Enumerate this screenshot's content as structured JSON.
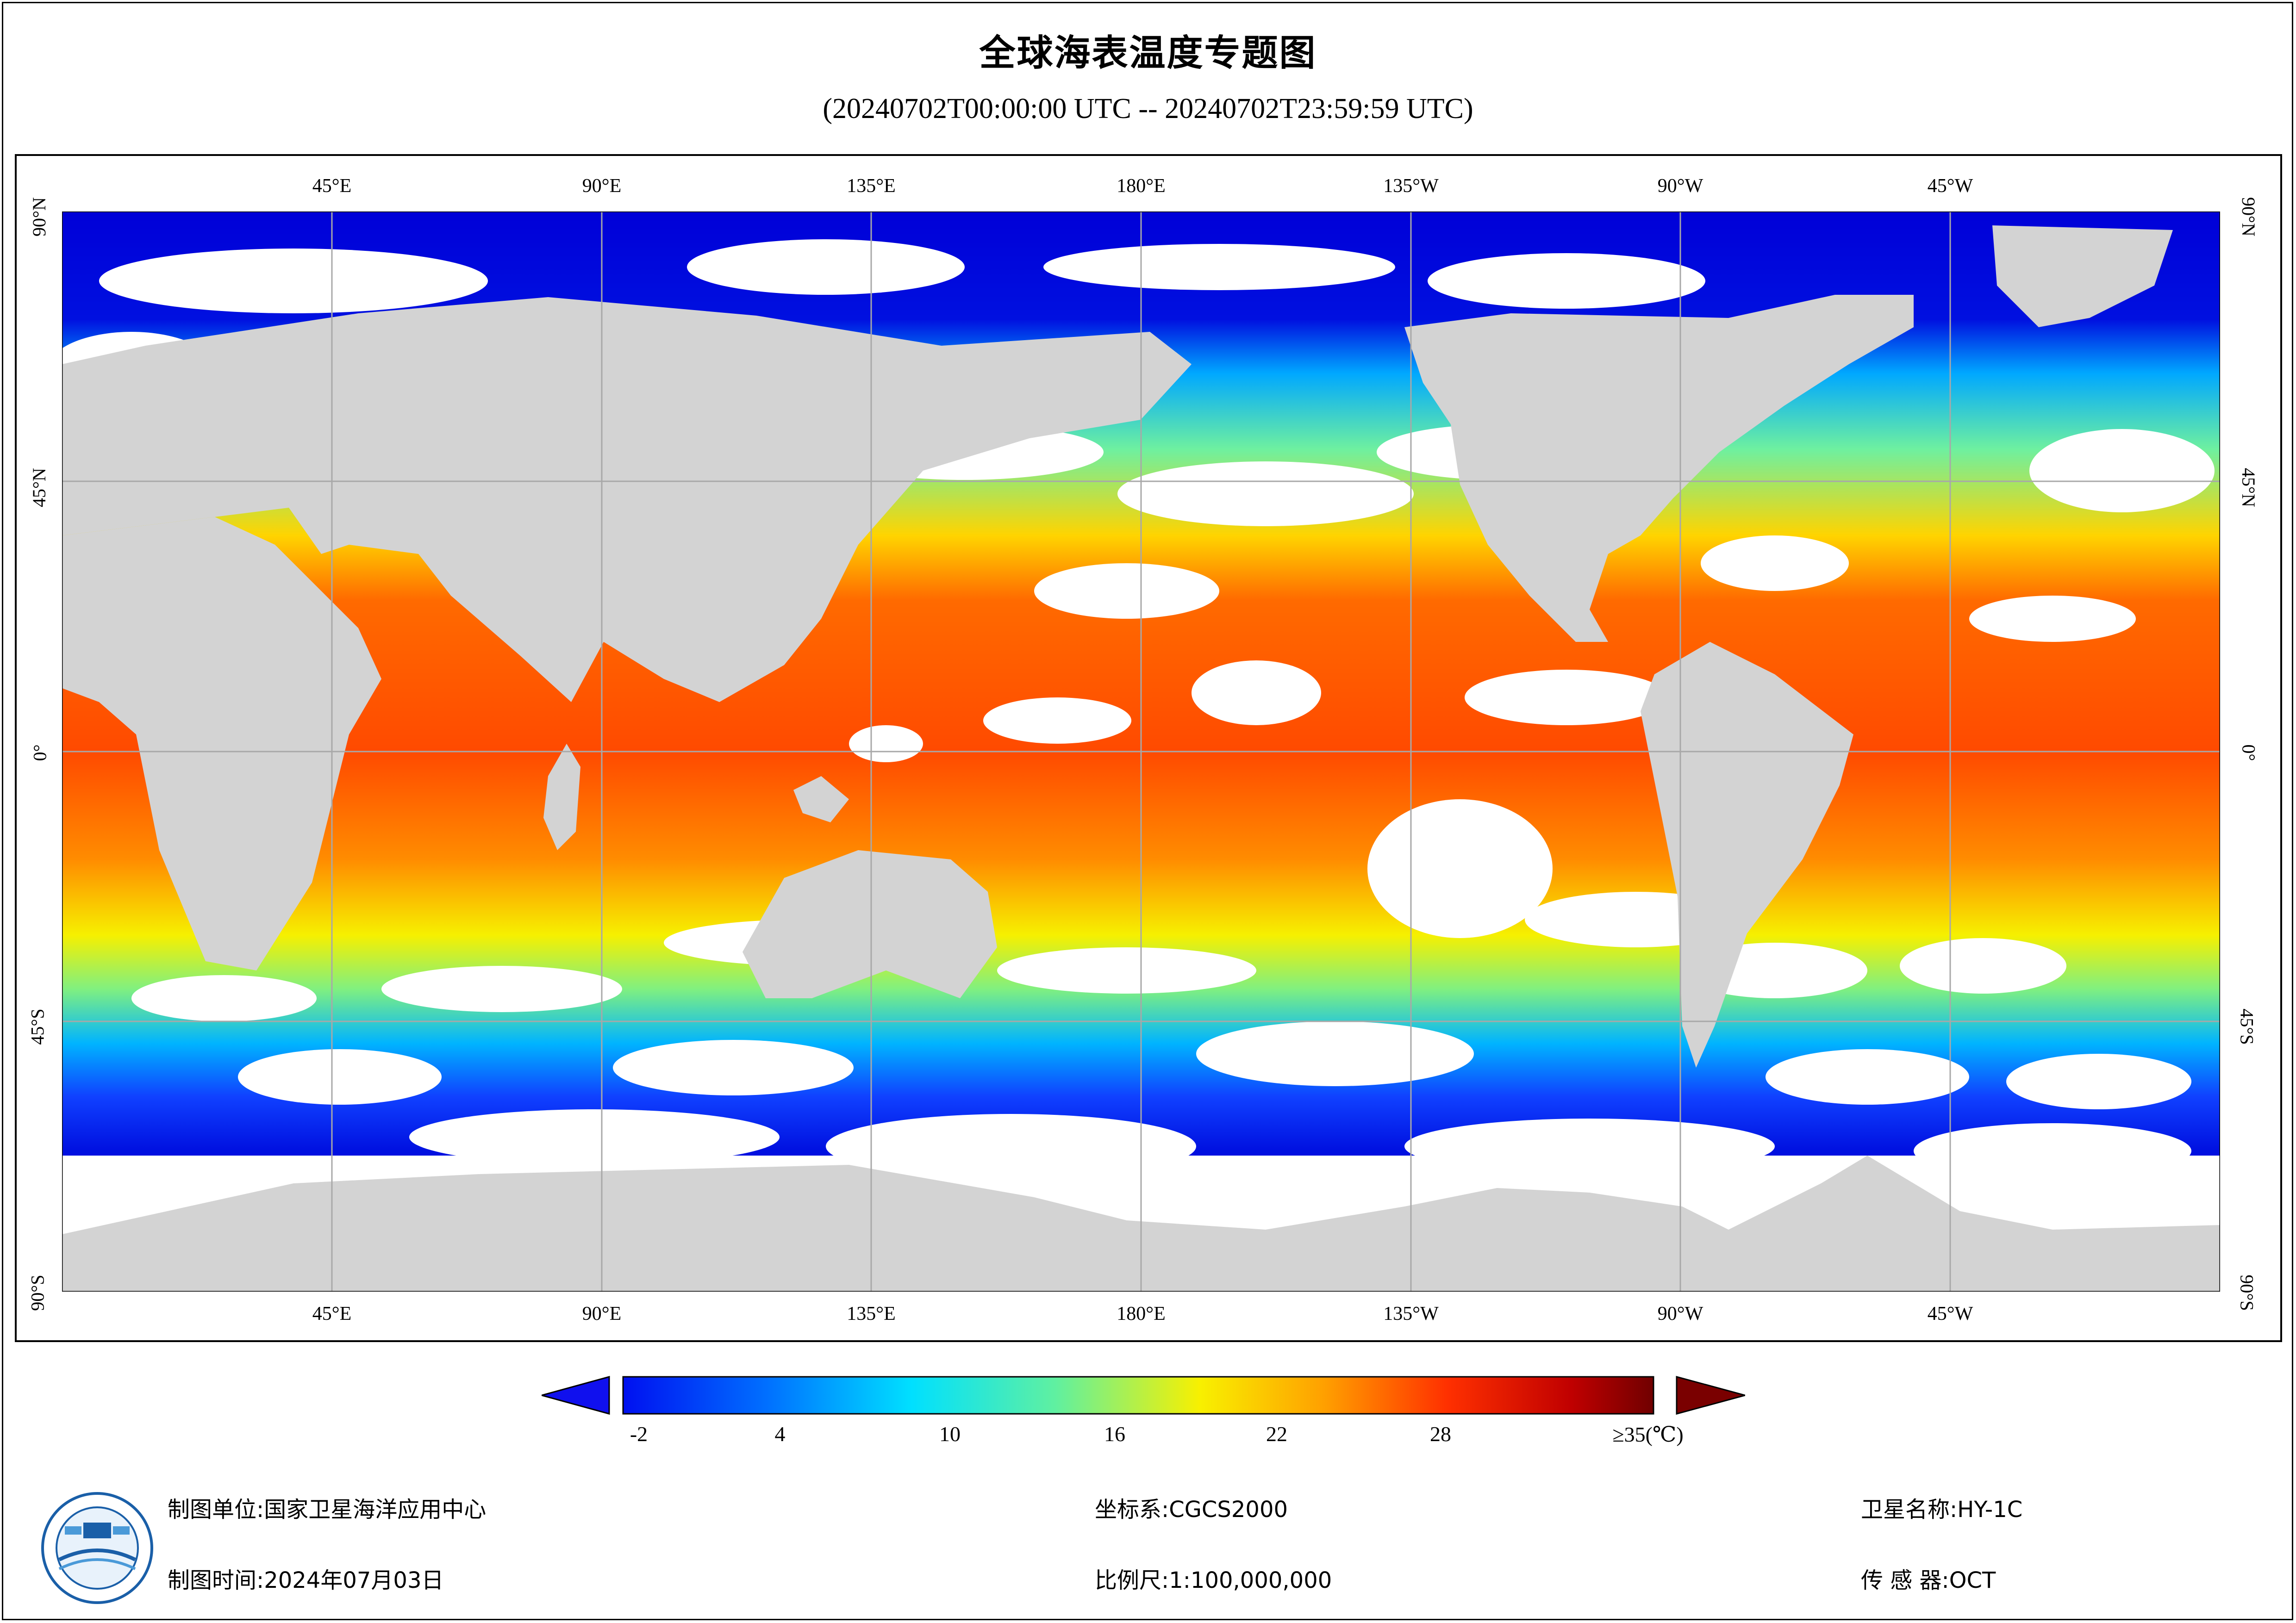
{
  "title": "全球海表温度专题图",
  "subtitle": "(20240702T00:00:00 UTC -- 20240702T23:59:59 UTC)",
  "map": {
    "lon_labels_top": [
      "45°E",
      "90°E",
      "135°E",
      "180°E",
      "135°W",
      "90°W",
      "45°W"
    ],
    "lon_labels_bottom": [
      "45°E",
      "90°E",
      "135°E",
      "180°E",
      "135°W",
      "90°W",
      "45°W"
    ],
    "lat_labels_left": [
      "90°N",
      "45°N",
      "0°",
      "45°S",
      "90°S"
    ],
    "lat_labels_right": [
      "90°N",
      "45°N",
      "0°",
      "45°S",
      "90°S"
    ],
    "colors": {
      "land": "#d3d3d3",
      "cloud": "#ffffff",
      "grid": "#a8a8a8",
      "ice_ocean": "#0000dc"
    }
  },
  "colorbar": {
    "tick_labels": [
      "-2",
      "4",
      "10",
      "16",
      "22",
      "28",
      "≥35(℃)"
    ],
    "min": -2,
    "max": 35,
    "under_color": "#1010ee",
    "over_color": "#7a0000"
  },
  "footer": {
    "producer_label": "制图单位:",
    "producer_value": "国家卫星海洋应用中心",
    "date_label": "制图时间:",
    "date_value": "2024年07月03日",
    "crs_label": "坐标系:",
    "crs_value": "CGCS2000",
    "scale_label": "比例尺:",
    "scale_value": "1:100,000,000",
    "satellite_label": "卫星名称:",
    "satellite_value": "HY-1C",
    "sensor_label": "传 感 器:",
    "sensor_value": "OCT"
  }
}
